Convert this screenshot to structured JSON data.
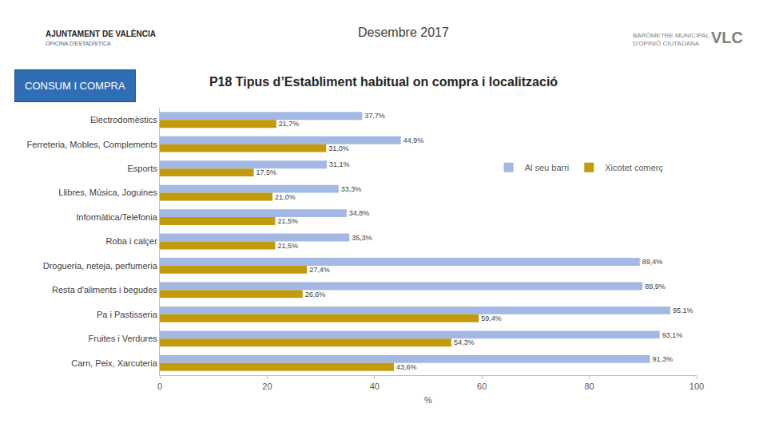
{
  "chart_data": {
    "type": "bar",
    "orientation": "horizontal",
    "title": "P18 Tipus d’Establiment habitual on compra i localització",
    "x_label": "%",
    "annotations": [
      "Desembre 2017",
      "AJUNTAMENT DE VALÈNCIA",
      "OFICINA D'ESTADÍSTICA",
      "BARÒMETRE MUNICIPAL",
      "D'OPINIÓ CIUTADANA",
      "VLC",
      "CONSUM I COMPRA"
    ],
    "categories": [
      "Electrodomèstics",
      "Ferreteria, Mobles, Complements",
      "Esports",
      "Llibres, Música, Joguines",
      "Informàtica/Telefonia",
      "Roba i calçer",
      "Drogueria, neteja, perfumeria",
      "Resta d'aliments i begudes",
      "Pa i Pastisseria",
      "Fruites i Verdures",
      "Carn, Peix, Xarcuteria"
    ],
    "series": [
      {
        "name": "Al seu barri",
        "color": "#a3b8e3",
        "values": [
          37.7,
          44.9,
          31.1,
          33.3,
          34.8,
          35.3,
          89.4,
          89.9,
          95.1,
          93.1,
          91.3
        ],
        "value_labels": [
          "37,7%",
          "44,9%",
          "31,1%",
          "33,3%",
          "34,8%",
          "35,3%",
          "89,4%",
          "89,9%",
          "95,1%",
          "93,1%",
          "91,3%"
        ]
      },
      {
        "name": "Xicotet comerç",
        "color": "#c29a0c",
        "values": [
          21.7,
          31.0,
          17.5,
          21.0,
          21.5,
          21.5,
          27.4,
          26.6,
          59.4,
          54.3,
          43.6
        ],
        "value_labels": [
          "21,7%",
          "31,0%",
          "17,5%",
          "21,0%",
          "21,5%",
          "21,5%",
          "27,4%",
          "26,6%",
          "59,4%",
          "54,3%",
          "43,6%"
        ]
      }
    ],
    "xlim": [
      0,
      100
    ],
    "xticks": [
      0,
      20,
      40,
      60,
      80,
      100
    ],
    "grid": false,
    "legend": "upper right",
    "data_labels": true
  }
}
